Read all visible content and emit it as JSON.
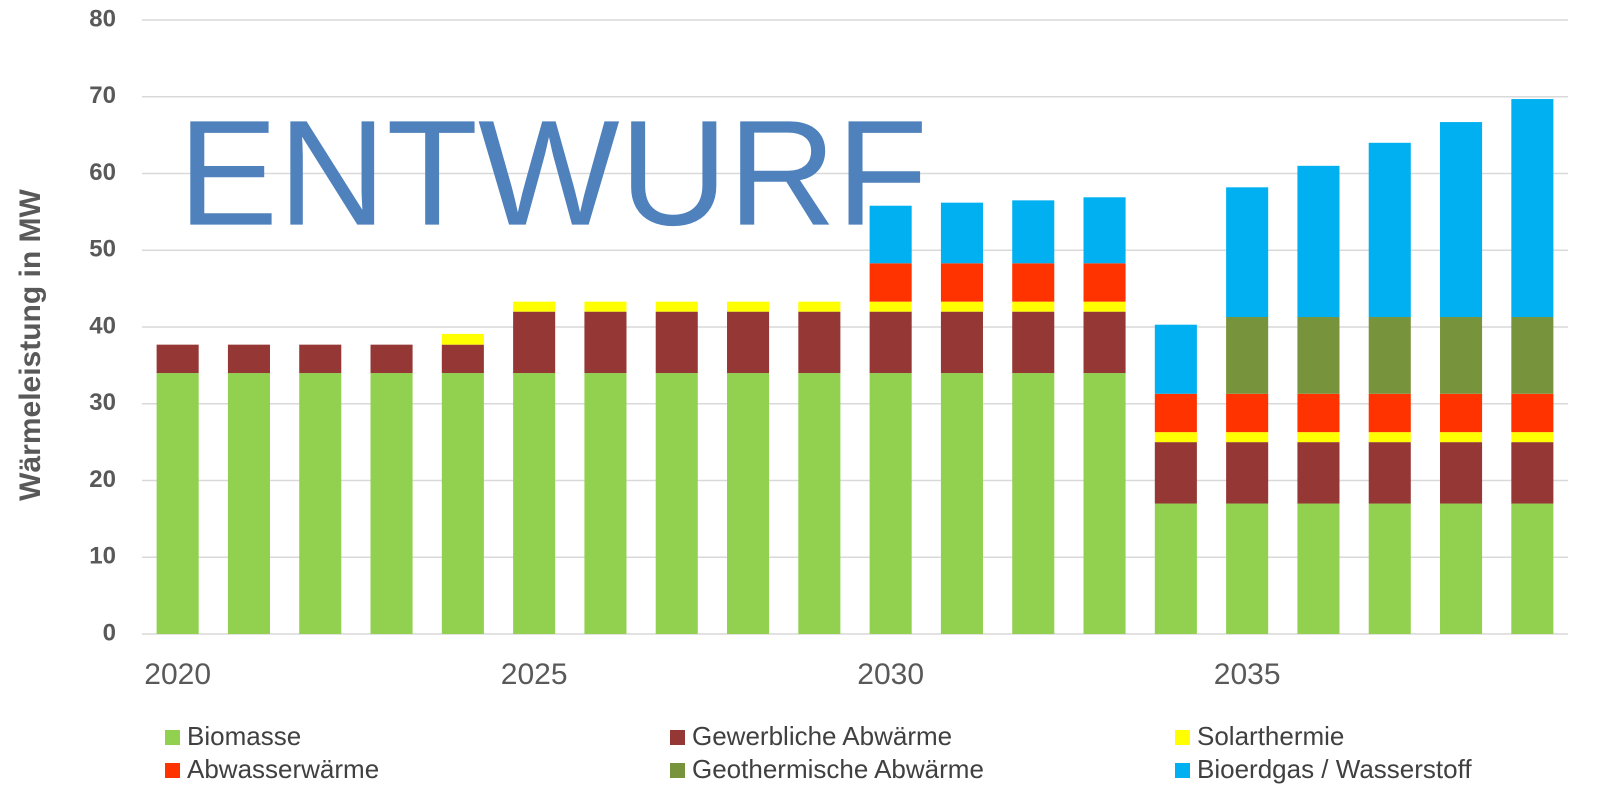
{
  "chart_data": {
    "type": "stacked_bar",
    "annotation": "ENTWURF",
    "y_label": "Wärmeleistung in MW",
    "x": [
      2020,
      2021,
      2022,
      2023,
      2024,
      2025,
      2026,
      2027,
      2028,
      2029,
      2030,
      2031,
      2032,
      2033,
      2034,
      2035,
      2036,
      2037,
      2038,
      2039
    ],
    "xlim": [
      2019.5,
      2039.5
    ],
    "xticks": [
      2020,
      2025,
      2030,
      2035
    ],
    "ylim": [
      0,
      80
    ],
    "yticks": [
      0,
      10,
      20,
      30,
      40,
      50,
      60,
      70,
      80
    ],
    "grid": true,
    "legend": "bottom",
    "series": [
      {
        "name": "Biomasse",
        "color": "#92d050",
        "values": [
          34,
          34,
          34,
          34,
          34,
          34,
          34,
          34,
          34,
          34,
          34,
          34,
          34,
          34,
          17,
          17,
          17,
          17,
          17,
          17
        ]
      },
      {
        "name": "Gewerbliche Abwärme",
        "color": "#953735",
        "values": [
          3.7,
          3.7,
          3.7,
          3.7,
          3.7,
          8,
          8,
          8,
          8,
          8,
          8,
          8,
          8,
          8,
          8,
          8,
          8,
          8,
          8,
          8
        ]
      },
      {
        "name": "Solarthermie",
        "color": "#ffff00",
        "values": [
          0,
          0,
          0,
          0,
          1.4,
          1.3,
          1.3,
          1.3,
          1.3,
          1.3,
          1.3,
          1.3,
          1.3,
          1.3,
          1.3,
          1.3,
          1.3,
          1.3,
          1.3,
          1.3
        ]
      },
      {
        "name": "Abwasserwärme",
        "color": "#ff3300",
        "values": [
          0,
          0,
          0,
          0,
          0,
          0,
          0,
          0,
          0,
          0,
          5,
          5,
          5,
          5,
          5,
          5,
          5,
          5,
          5,
          5
        ]
      },
      {
        "name": "Geothermische Abwärme",
        "color": "#77933c",
        "values": [
          0,
          0,
          0,
          0,
          0,
          0,
          0,
          0,
          0,
          0,
          0,
          0,
          0,
          0,
          0,
          10,
          10,
          10,
          10,
          10
        ]
      },
      {
        "name": "Bioerdgas / Wasserstoff",
        "color": "#00b0f0",
        "values": [
          0,
          0,
          0,
          0,
          0,
          0,
          0,
          0,
          0,
          0,
          7.5,
          7.9,
          8.2,
          8.6,
          9,
          16.9,
          19.7,
          22.7,
          25.4,
          28.4
        ]
      }
    ]
  }
}
